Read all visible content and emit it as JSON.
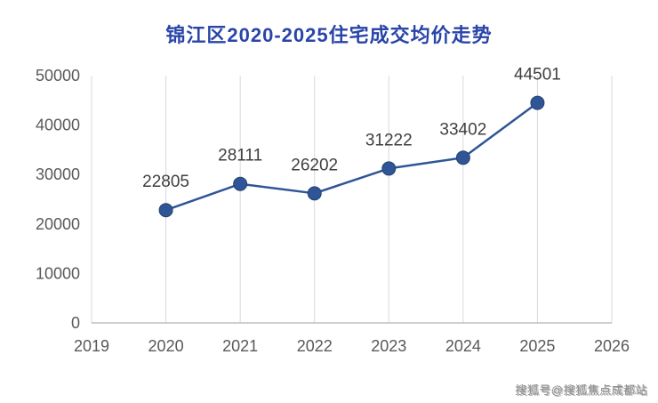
{
  "title": "锦江区2020-2025住宅成交均价走势",
  "watermark": "搜狐号@搜狐焦点成都站",
  "colors": {
    "title": "#2945a8",
    "line": "#2f5597",
    "marker": "#2f5597",
    "marker_edge": "#25426e",
    "grid": "#d9d9d9",
    "axis": "#bfbfbf",
    "tick_label": "#595959",
    "data_label": "#3f3f3f",
    "watermark": "#8c8c8c"
  },
  "chart_data": {
    "type": "line",
    "title": "锦江区2020-2025住宅成交均价走势",
    "x": [
      2020,
      2021,
      2022,
      2023,
      2024,
      2025
    ],
    "values": [
      22805,
      28111,
      26202,
      31222,
      33402,
      44501
    ],
    "data_labels": [
      "22805",
      "28111",
      "26202",
      "31222",
      "33402",
      "44501"
    ],
    "xlabel": "",
    "ylabel": "",
    "xlim": [
      2019,
      2026
    ],
    "ylim": [
      0,
      50000
    ],
    "x_ticks": [
      "2019",
      "2020",
      "2021",
      "2022",
      "2023",
      "2024",
      "2025",
      "2026"
    ],
    "y_ticks": [
      "0",
      "10000",
      "20000",
      "30000",
      "40000",
      "50000"
    ],
    "grid": "vertical-only",
    "legend": "none",
    "data_labels_shown": true
  }
}
